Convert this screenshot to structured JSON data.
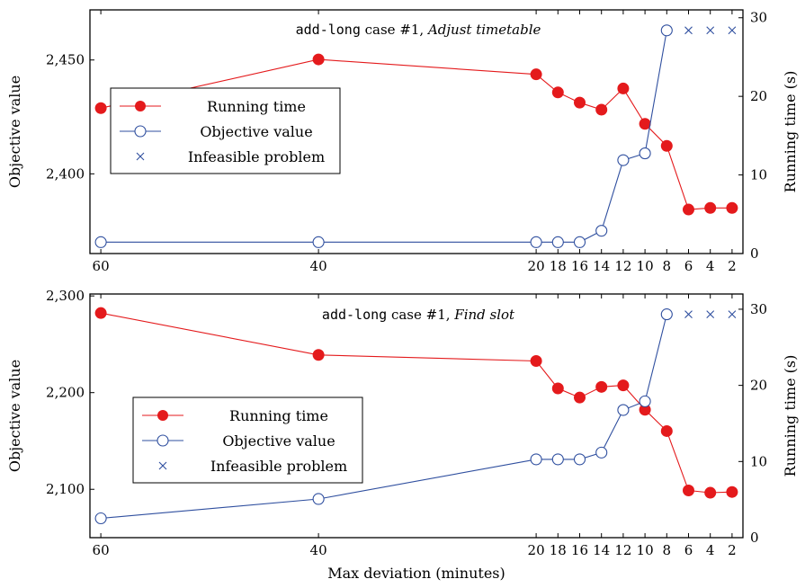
{
  "chart_data": [
    {
      "type": "line",
      "title": {
        "code": "add-long",
        "plain": " case #1, ",
        "italic": "Adjust timetable"
      },
      "xlabel": "",
      "ylabel_left": "Objective value",
      "ylabel_right": "Running time (s)",
      "x": [
        60,
        40,
        20,
        18,
        16,
        14,
        12,
        10,
        8,
        6,
        4,
        2
      ],
      "x_tick_labels": [
        "60",
        "40",
        "20",
        "18",
        "16",
        "14",
        "12",
        "10",
        "8",
        "6",
        "4",
        "2"
      ],
      "xlim": [
        61,
        1
      ],
      "ylim_left": [
        2365,
        2472
      ],
      "ylim_right": [
        0,
        31
      ],
      "y_ticks_left": [
        {
          "v": 2400,
          "label": "2,400"
        },
        {
          "v": 2450,
          "label": "2,450"
        }
      ],
      "y_ticks_right": [
        {
          "v": 0,
          "label": "0"
        },
        {
          "v": 10,
          "label": "10"
        },
        {
          "v": 20,
          "label": "20"
        },
        {
          "v": 30,
          "label": "30"
        }
      ],
      "series": [
        {
          "name": "Running time",
          "axis": "right",
          "color": "#e41a1c",
          "marker": "filled-circle",
          "values": [
            18.5,
            24.7,
            22.8,
            20.5,
            19.2,
            18.3,
            21.0,
            16.5,
            13.7,
            5.6,
            5.8,
            5.8
          ]
        },
        {
          "name": "Objective value",
          "axis": "left",
          "color": "#2f4f9f",
          "marker": "open-circle",
          "values": [
            2370,
            2370,
            2370,
            2370,
            2370,
            2375,
            2406,
            2409,
            2463,
            null,
            null,
            null
          ]
        },
        {
          "name": "Infeasible problem",
          "axis": "left",
          "color": "#2f4f9f",
          "marker": "cross",
          "x": [
            6,
            4,
            2
          ],
          "values": [
            2463,
            2463,
            2463
          ]
        }
      ],
      "legend": "middle-left",
      "grid": false
    },
    {
      "type": "line",
      "title": {
        "code": "add-long",
        "plain": " case #1, ",
        "italic": "Find slot"
      },
      "xlabel": "Max deviation (minutes)",
      "ylabel_left": "Objective value",
      "ylabel_right": "Running time (s)",
      "x": [
        60,
        40,
        20,
        18,
        16,
        14,
        12,
        10,
        8,
        6,
        4,
        2
      ],
      "x_tick_labels": [
        "60",
        "40",
        "20",
        "18",
        "16",
        "14",
        "12",
        "10",
        "8",
        "6",
        "4",
        "2"
      ],
      "xlim": [
        61,
        1
      ],
      "ylim_left": [
        2050,
        2302
      ],
      "ylim_right": [
        0,
        32
      ],
      "y_ticks_left": [
        {
          "v": 2100,
          "label": "2,100"
        },
        {
          "v": 2200,
          "label": "2,200"
        },
        {
          "v": 2300,
          "label": "2,300"
        }
      ],
      "y_ticks_right": [
        {
          "v": 0,
          "label": "0"
        },
        {
          "v": 10,
          "label": "10"
        },
        {
          "v": 20,
          "label": "20"
        },
        {
          "v": 30,
          "label": "30"
        }
      ],
      "series": [
        {
          "name": "Running time",
          "axis": "right",
          "color": "#e41a1c",
          "marker": "filled-circle",
          "values": [
            29.5,
            24.0,
            23.2,
            19.6,
            18.4,
            19.8,
            20.0,
            16.8,
            14.0,
            6.2,
            5.9,
            6.0
          ]
        },
        {
          "name": "Objective value",
          "axis": "left",
          "color": "#2f4f9f",
          "marker": "open-circle",
          "values": [
            2070,
            2090,
            2131,
            2131,
            2131,
            2138,
            2182,
            2191,
            2281,
            null,
            null,
            null
          ]
        },
        {
          "name": "Infeasible problem",
          "axis": "left",
          "color": "#2f4f9f",
          "marker": "cross",
          "x": [
            6,
            4,
            2
          ],
          "values": [
            2281,
            2281,
            2281
          ]
        }
      ],
      "legend": "lower-left",
      "grid": false
    }
  ]
}
